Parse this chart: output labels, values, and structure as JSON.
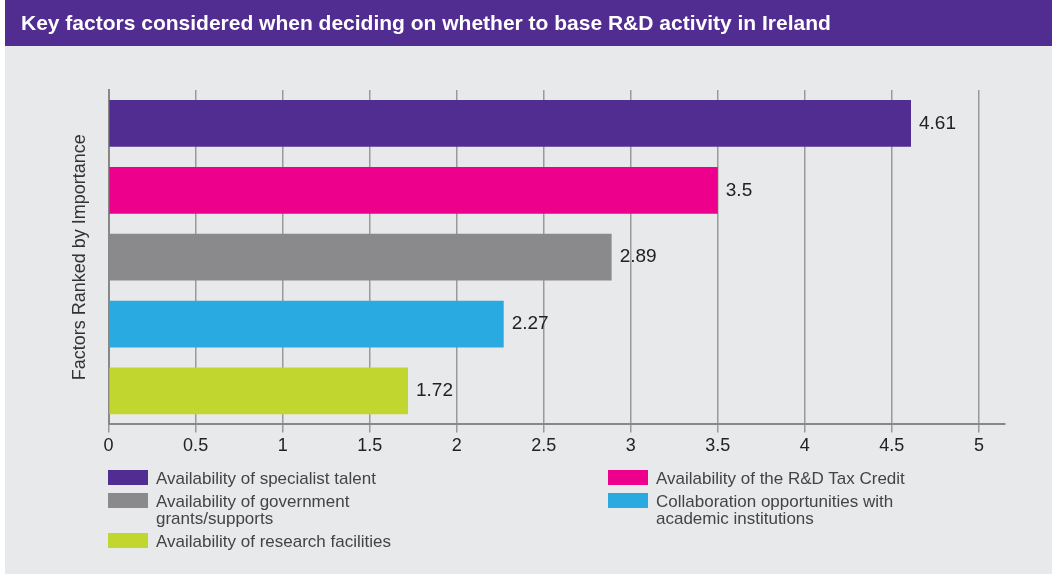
{
  "chart_data": {
    "type": "bar",
    "orientation": "horizontal",
    "title": "Key factors considered when deciding on whether to base R&D activity in Ireland",
    "ylabel": "Factors Ranked by Importance",
    "categories": [
      null,
      null,
      null,
      null,
      null
    ],
    "series": [
      {
        "name": "Availability of specialist talent",
        "color": "#522d91",
        "values": [
          4.61,
          null,
          null,
          null,
          null
        ]
      },
      {
        "name": "Availability of the R&D Tax Credit",
        "color": "#ec008c",
        "values": [
          null,
          3.5,
          null,
          null,
          null
        ]
      },
      {
        "name": "Availability of government grants/supports",
        "color": "#8a8a8d",
        "values": [
          null,
          null,
          2.89,
          null,
          null
        ]
      },
      {
        "name": "Collaboration opportunities with academic institutions",
        "color": "#29abe2",
        "values": [
          null,
          null,
          null,
          2.27,
          null
        ]
      },
      {
        "name": "Availability of research facilities",
        "color": "#c1d72f",
        "values": [
          null,
          null,
          null,
          null,
          1.72
        ]
      }
    ],
    "xlim": [
      0,
      5.15
    ],
    "xticks": [
      0,
      0.5,
      1,
      1.5,
      2,
      2.5,
      3,
      3.5,
      4,
      4.5,
      5
    ],
    "grid": "x",
    "legend": "bottom",
    "data_labels": true
  }
}
